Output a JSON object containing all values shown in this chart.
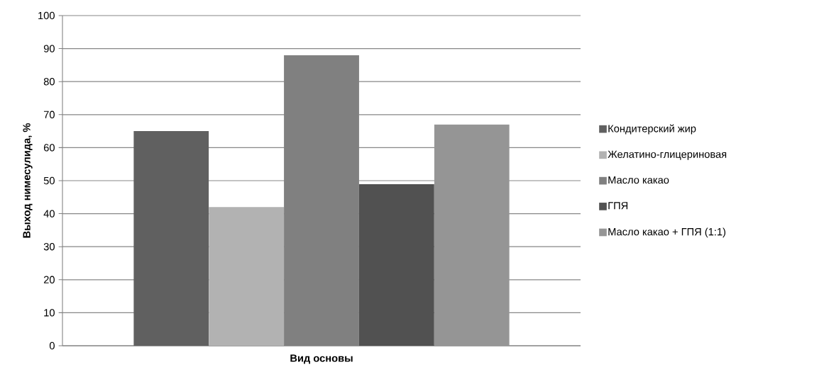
{
  "chart_data": {
    "type": "bar",
    "xlabel": "Вид основы",
    "ylabel": "Выход нимесулида, %",
    "categories": [
      null
    ],
    "series": [
      {
        "name": "Кондитерский жир",
        "color": "#606060",
        "values": [
          65
        ]
      },
      {
        "name": "Желатино-глицериновая",
        "color": "#b2b2b2",
        "values": [
          42
        ]
      },
      {
        "name": "Масло какао",
        "color": "#808080",
        "values": [
          88
        ]
      },
      {
        "name": "ГПЯ",
        "color": "#515151",
        "values": [
          49
        ]
      },
      {
        "name": "Масло какао + ГПЯ (1:1)",
        "color": "#959595",
        "values": [
          67
        ]
      }
    ],
    "ylim": [
      0,
      100
    ],
    "yticks": [
      0,
      10,
      20,
      30,
      40,
      50,
      60,
      70,
      80,
      90,
      100
    ],
    "grid": "y",
    "legend": "right"
  }
}
